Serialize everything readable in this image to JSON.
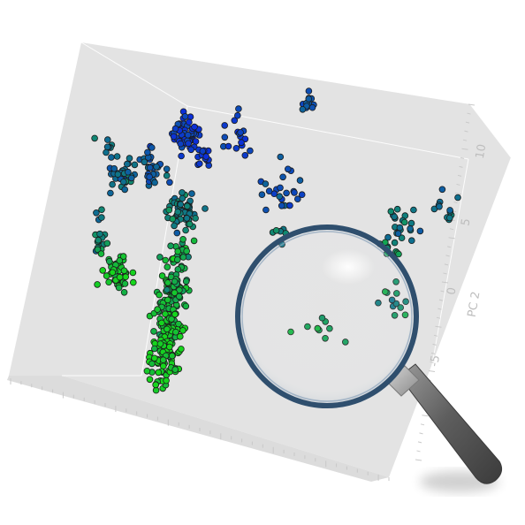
{
  "chart_data": {
    "type": "scatter",
    "projection": "3d",
    "title": "",
    "axes": {
      "y_axis_title": "PC 2",
      "y_ticks": [
        "10",
        "5",
        "0",
        "-5"
      ]
    },
    "grid": false,
    "legend": "none",
    "colors": {
      "low": "#0b2fd9",
      "mid": "#0f7a82",
      "high": "#16d61c",
      "marker_edge": "#1b1b1b",
      "panel": "#e3e3e3",
      "panel_edge": "#ffffff"
    },
    "clusters": [
      {
        "center": [
          348,
          116
        ],
        "count": 12,
        "spread": 9,
        "tone": 0.25
      },
      {
        "center": [
          210,
          152
        ],
        "count": 60,
        "spread": 14,
        "tone": 0.05
      },
      {
        "center": [
          268,
          152
        ],
        "count": 18,
        "spread": 18,
        "tone": 0.1
      },
      {
        "center": [
          230,
          178
        ],
        "count": 14,
        "spread": 10,
        "tone": 0.05
      },
      {
        "center": [
          140,
          198
        ],
        "count": 40,
        "spread": 13,
        "tone": 0.4
      },
      {
        "center": [
          175,
          188
        ],
        "count": 30,
        "spread": 15,
        "tone": 0.3
      },
      {
        "center": [
          122,
          165
        ],
        "count": 8,
        "spread": 8,
        "tone": 0.45
      },
      {
        "center": [
          322,
          218
        ],
        "count": 24,
        "spread": 22,
        "tone": 0.2
      },
      {
        "center": [
          205,
          240
        ],
        "count": 60,
        "spread": 15,
        "tone": 0.5
      },
      {
        "center": [
          113,
          242
        ],
        "count": 4,
        "spread": 5,
        "tone": 0.45
      },
      {
        "center": [
          112,
          274
        ],
        "count": 16,
        "spread": 8,
        "tone": 0.6
      },
      {
        "center": [
          132,
          312
        ],
        "count": 50,
        "spread": 14,
        "tone": 0.92
      },
      {
        "center": [
          200,
          290
        ],
        "count": 30,
        "spread": 15,
        "tone": 0.75
      },
      {
        "center": [
          196,
          330
        ],
        "count": 80,
        "spread": 16,
        "tone": 0.8
      },
      {
        "center": [
          190,
          370
        ],
        "count": 70,
        "spread": 15,
        "tone": 0.88
      },
      {
        "center": [
          186,
          405
        ],
        "count": 60,
        "spread": 16,
        "tone": 0.95
      },
      {
        "center": [
          178,
          436
        ],
        "count": 12,
        "spread": 10,
        "tone": 0.92
      },
      {
        "center": [
          315,
          262
        ],
        "count": 6,
        "spread": 9,
        "tone": 0.55
      },
      {
        "center": [
          455,
          255
        ],
        "count": 22,
        "spread": 18,
        "tone": 0.5
      },
      {
        "center": [
          505,
          236
        ],
        "count": 12,
        "spread": 14,
        "tone": 0.4
      },
      {
        "center": [
          440,
          292
        ],
        "count": 8,
        "spread": 12,
        "tone": 0.7
      },
      {
        "center": [
          445,
          338
        ],
        "count": 12,
        "spread": 16,
        "tone": 0.6
      },
      {
        "center": [
          362,
          370
        ],
        "count": 10,
        "spread": 20,
        "tone": 0.7
      }
    ]
  }
}
